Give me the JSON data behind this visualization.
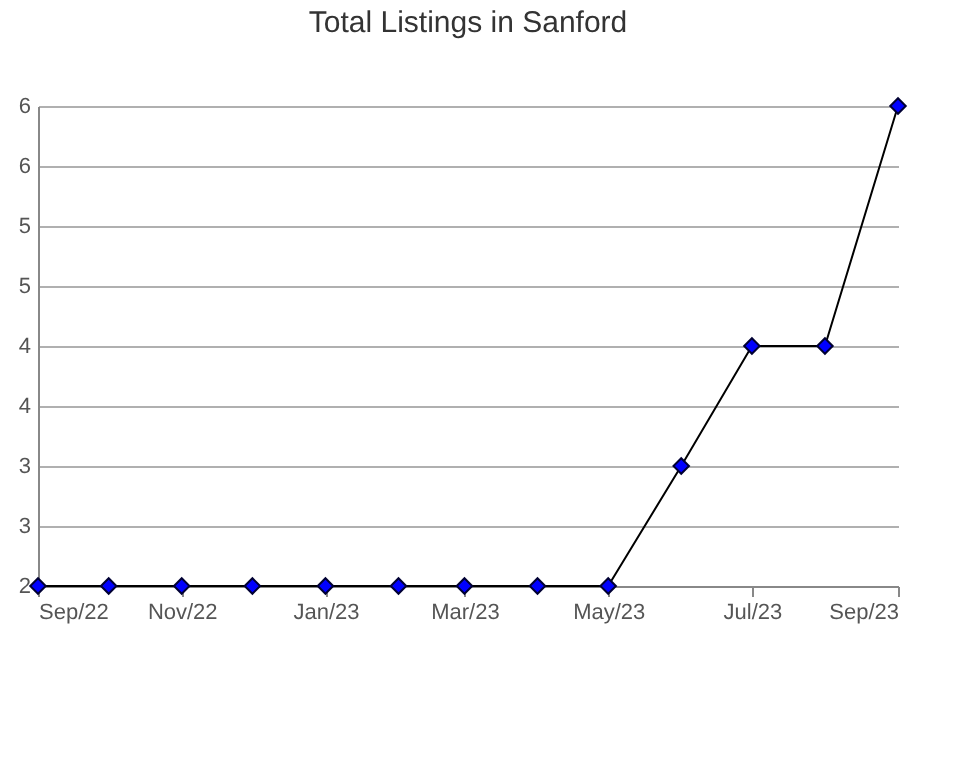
{
  "chart_data": {
    "type": "line",
    "title": "Total Listings in Sanford",
    "x": [
      "2022-09",
      "2022-10",
      "2022-11",
      "2022-12",
      "2023-01",
      "2023-02",
      "2023-03",
      "2023-04",
      "2023-05",
      "2023-06",
      "2023-07",
      "2023-08",
      "2023-09"
    ],
    "series": [
      {
        "color": "#0000ff",
        "values": [
          2,
          2,
          2,
          2,
          2,
          2,
          2,
          2,
          2,
          3,
          4,
          4,
          6
        ]
      }
    ],
    "xlim": [
      "2022-09",
      "2023-09"
    ],
    "xticks": [
      {
        "value": "2022-09",
        "label": "Sep/22"
      },
      {
        "value": "2022-11",
        "label": "Nov/22"
      },
      {
        "value": "2023-01",
        "label": "Jan/23"
      },
      {
        "value": "2023-03",
        "label": "Mar/23"
      },
      {
        "value": "2023-05",
        "label": "May/23"
      },
      {
        "value": "2023-07",
        "label": "Jul/23"
      },
      {
        "value": "2023-09",
        "label": "Sep/23"
      }
    ],
    "ylim": [
      2,
      6
    ],
    "yticks": [
      2,
      {
        "value": 2.5,
        "label": "3"
      },
      3,
      {
        "value": 3.5,
        "label": "4"
      },
      4,
      {
        "value": 4.5,
        "label": "5"
      },
      5,
      {
        "value": 5.5,
        "label": "6"
      },
      6
    ],
    "grid": "y",
    "marker": "diamond",
    "line_style": "solid"
  }
}
